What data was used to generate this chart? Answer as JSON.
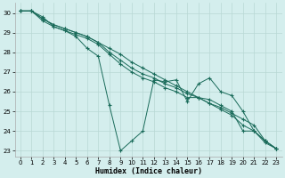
{
  "xlabel": "Humidex (Indice chaleur)",
  "bg_color": "#d4eeed",
  "grid_color": "#b8d8d4",
  "line_color": "#1a6b5a",
  "xlim": [
    -0.5,
    23.5
  ],
  "ylim": [
    22.7,
    30.5
  ],
  "xticks": [
    0,
    1,
    2,
    3,
    4,
    5,
    6,
    7,
    8,
    9,
    10,
    11,
    12,
    13,
    14,
    15,
    16,
    17,
    18,
    19,
    20,
    21,
    22,
    23
  ],
  "yticks": [
    23,
    24,
    25,
    26,
    27,
    28,
    29,
    30
  ],
  "series": [
    {
      "x": [
        0,
        1,
        2,
        3,
        4,
        5,
        6,
        7,
        8,
        9,
        10,
        11,
        12,
        13,
        14,
        15,
        16,
        17,
        18,
        19,
        20,
        21,
        22,
        23
      ],
      "y": [
        30.1,
        30.1,
        29.7,
        29.4,
        29.2,
        29.0,
        28.8,
        28.5,
        28.2,
        27.9,
        27.5,
        27.2,
        26.9,
        26.6,
        26.3,
        26.0,
        25.7,
        25.4,
        25.2,
        24.9,
        24.6,
        24.3,
        23.5,
        23.1
      ]
    },
    {
      "x": [
        0,
        1,
        2,
        3,
        4,
        5,
        6,
        7,
        8,
        9,
        10,
        11,
        12,
        13,
        14,
        15,
        16,
        17,
        18,
        19,
        20,
        21,
        22,
        23
      ],
      "y": [
        30.1,
        30.1,
        29.7,
        29.4,
        29.2,
        29.0,
        28.8,
        28.5,
        28.0,
        27.6,
        27.2,
        26.9,
        26.7,
        26.4,
        26.2,
        25.9,
        25.7,
        25.4,
        25.1,
        24.8,
        24.3,
        24.0,
        23.5,
        23.1
      ]
    },
    {
      "x": [
        0,
        1,
        2,
        3,
        4,
        5,
        6,
        7,
        8,
        9,
        10,
        11,
        12,
        13,
        14,
        15,
        16,
        17,
        18,
        19,
        20,
        21,
        22,
        23
      ],
      "y": [
        30.1,
        30.1,
        29.6,
        29.3,
        29.1,
        28.9,
        28.7,
        28.4,
        27.9,
        27.4,
        27.0,
        26.7,
        26.5,
        26.2,
        26.0,
        25.7,
        25.7,
        25.6,
        25.3,
        25.0,
        24.0,
        24.0,
        23.4,
        23.1
      ]
    },
    {
      "x": [
        0,
        1,
        2,
        3,
        4,
        5,
        6,
        7,
        8,
        9,
        10,
        11,
        12,
        13,
        14,
        15,
        16,
        17,
        18,
        19,
        20,
        21,
        22,
        23
      ],
      "y": [
        30.1,
        30.1,
        29.8,
        29.3,
        29.1,
        28.8,
        28.2,
        27.8,
        25.3,
        23.0,
        23.5,
        24.0,
        26.6,
        26.5,
        26.6,
        25.5,
        26.4,
        26.7,
        26.0,
        25.8,
        25.0,
        24.0,
        23.5,
        23.1
      ]
    }
  ]
}
